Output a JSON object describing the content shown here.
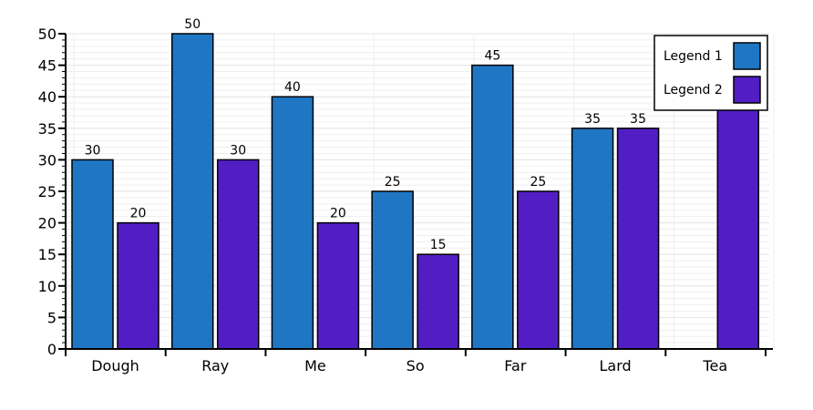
{
  "chart_data": {
    "type": "bar",
    "title": "",
    "xlabel": "",
    "ylabel": "",
    "categories": [
      "Dough",
      "Ray",
      "Me",
      "So",
      "Far",
      "Lard",
      "Tea"
    ],
    "series": [
      {
        "name": "Legend 1",
        "color": "#1f77c4",
        "values": [
          30,
          50,
          40,
          25,
          45,
          35,
          0
        ]
      },
      {
        "name": "Legend 2",
        "color": "#521ec4",
        "values": [
          20,
          30,
          20,
          15,
          25,
          35,
          40
        ]
      }
    ],
    "data_labels": [
      [
        "30",
        "50",
        "40",
        "25",
        "45",
        "35",
        ""
      ],
      [
        "20",
        "30",
        "20",
        "15",
        "25",
        "35",
        ""
      ]
    ],
    "ylim": [
      0,
      50
    ],
    "yticks": [
      "0",
      "5",
      "10",
      "15",
      "20",
      "25",
      "30",
      "35",
      "40",
      "45",
      "50"
    ],
    "grid": true,
    "legend_position": "top-right"
  }
}
